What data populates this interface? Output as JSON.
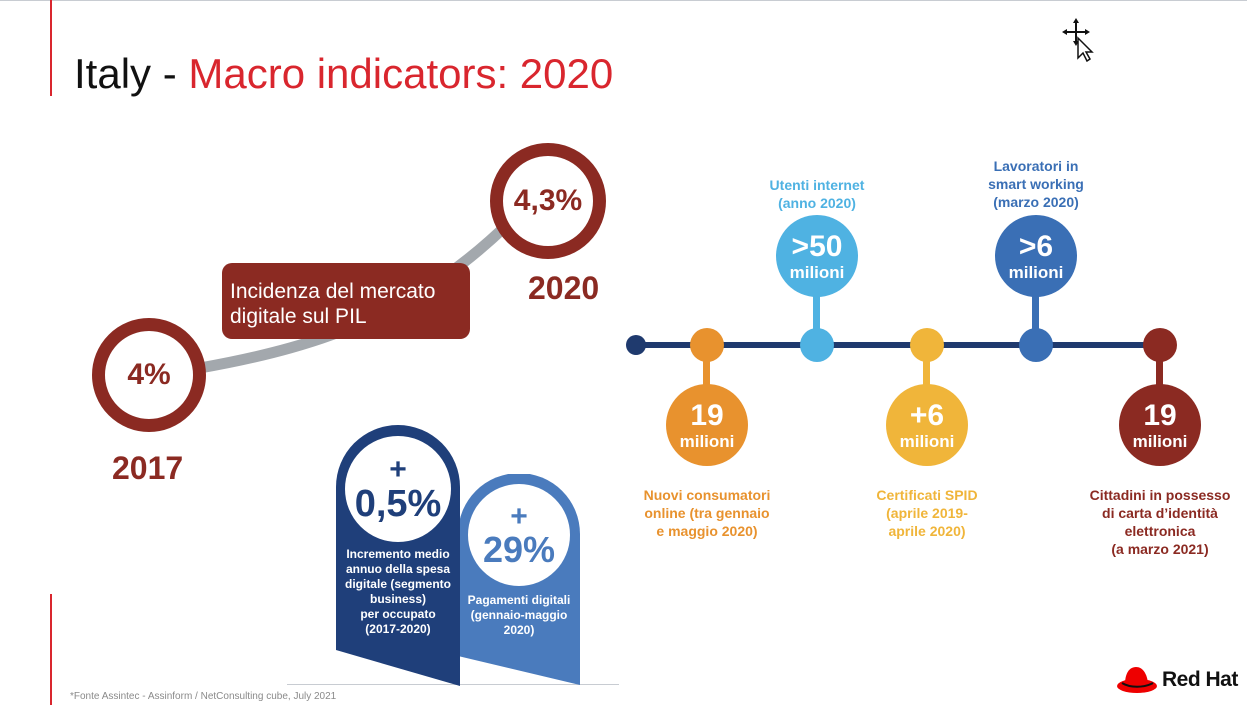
{
  "slide": {
    "title_prefix": "Italy - ",
    "title_highlight": "Macro indicators: 2020",
    "footnote": "*Fonte Assintec - Assinform / NetConsulting cube, July 2021"
  },
  "pil": {
    "label": "Incidenza del mercato\ndigitale sul PIL",
    "start_value": "4%",
    "start_year": "2017",
    "end_value": "4,3%",
    "end_year": "2020"
  },
  "tags": [
    {
      "sign": "+",
      "value": "0,5%",
      "caption": "Incremento medio\nannuo della spesa\ndigitale (segmento\nbusiness)\nper occupato\n(2017-2020)",
      "color": "#1f3f7a"
    },
    {
      "sign": "+",
      "value": "29%",
      "caption": "Pagamenti digitali\n(gennaio-maggio\n2020)",
      "color": "#4a7bbd"
    }
  ],
  "timeline": [
    {
      "value": "19",
      "unit": "milioni",
      "caption": "Nuovi consumatori\nonline (tra gennaio\ne maggio 2020)",
      "color": "#e8922e",
      "position": "below"
    },
    {
      "value": ">50",
      "unit": "milioni",
      "caption": "Utenti internet\n(anno 2020)",
      "color": "#4fb2e2",
      "position": "above"
    },
    {
      "value": "+6",
      "unit": "milioni",
      "caption": "Certificati SPID\n(aprile 2019-\naprile 2020)",
      "color": "#f0b53a",
      "position": "below"
    },
    {
      "value": ">6",
      "unit": "milioni",
      "caption": "Lavoratori in\nsmart working\n(marzo 2020)",
      "color": "#3a6fb5",
      "position": "above"
    },
    {
      "value": "19",
      "unit": "milioni",
      "caption": "Cittadini in possesso\ndi carta d’identità\nelettronica\n(a marzo 2021)",
      "color": "#8b2a22",
      "position": "below"
    }
  ],
  "colors": {
    "accent": "#d9262e",
    "maroon": "#8b2a22",
    "timeline_line": "#1f3a6e",
    "connector": "#a3a8ad"
  },
  "icons": {
    "cursor": "move-cursor-icon",
    "logo": "red-hat-logo-icon"
  },
  "logo": {
    "text": "Red Hat"
  }
}
